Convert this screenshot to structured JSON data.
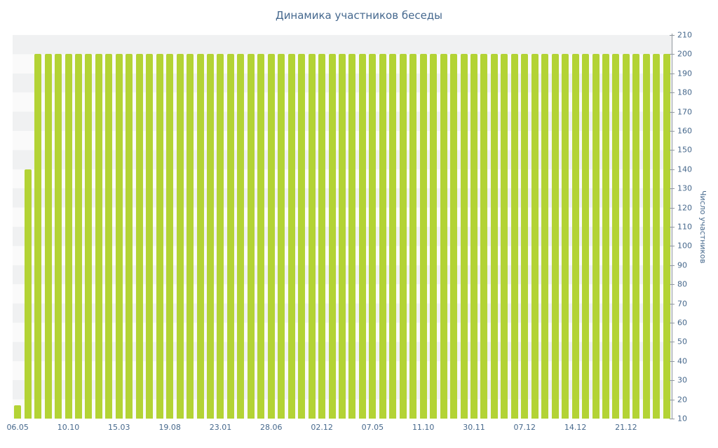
{
  "chart_data": {
    "type": "bar",
    "title": "Динамика участников беседы",
    "xlabel": "",
    "ylabel": "Число участников",
    "legend": "none",
    "grid": "horizontal-bands",
    "y_axis_position": "right",
    "ylim": [
      10,
      210
    ],
    "y_ticks": [
      10,
      20,
      30,
      40,
      50,
      60,
      70,
      80,
      90,
      100,
      110,
      120,
      130,
      140,
      150,
      160,
      170,
      180,
      190,
      200,
      210
    ],
    "x_tick_labels": [
      "06.05",
      "10.10",
      "15.03",
      "19.08",
      "23.01",
      "28.06",
      "02.12",
      "07.05",
      "11.10",
      "30.11",
      "07.12",
      "14.12",
      "21.12"
    ],
    "x_tick_every_n_bars": 5,
    "values": [
      17,
      140,
      200,
      200,
      200,
      200,
      200,
      200,
      200,
      200,
      200,
      200,
      200,
      200,
      200,
      200,
      200,
      200,
      200,
      200,
      200,
      200,
      200,
      200,
      200,
      200,
      200,
      200,
      200,
      200,
      200,
      200,
      200,
      200,
      200,
      200,
      200,
      200,
      200,
      200,
      200,
      200,
      200,
      200,
      200,
      200,
      200,
      200,
      200,
      200,
      200,
      200,
      200,
      200,
      200,
      200,
      200,
      200,
      200,
      200,
      200,
      200,
      200,
      200,
      200
    ],
    "colors": {
      "bar": "#b3d335",
      "title": "#45688e",
      "tick_label": "#46688c",
      "axis_line": "#8f979e",
      "band_dark": "#f0f1f2",
      "band_light": "#fafafa"
    }
  }
}
